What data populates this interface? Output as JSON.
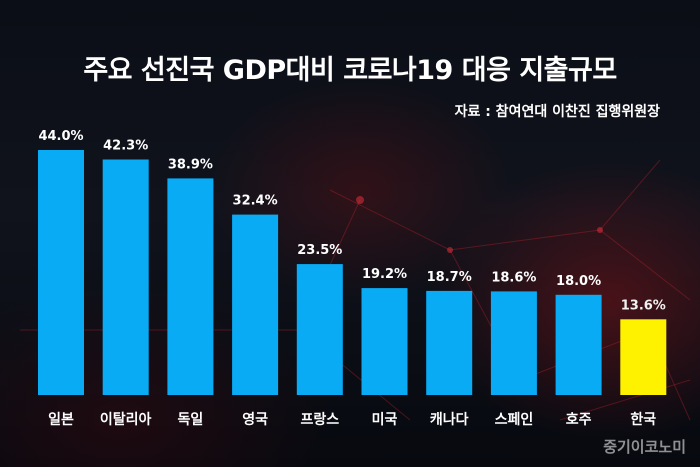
{
  "chart_data": {
    "type": "bar",
    "title": "주요 선진국 GDP대비 코로나19 대응 지출규모",
    "subtitle": "자료 : 참여연대 이찬진 집행위원장",
    "categories": [
      "일본",
      "이탈리아",
      "독일",
      "영국",
      "프랑스",
      "미국",
      "캐나다",
      "스페인",
      "호주",
      "한국"
    ],
    "values": [
      44.0,
      42.3,
      38.9,
      32.4,
      23.5,
      19.2,
      18.7,
      18.6,
      18.0,
      13.6
    ],
    "value_labels": [
      "44.0%",
      "42.3%",
      "38.9%",
      "32.4%",
      "23.5%",
      "19.2%",
      "18.7%",
      "18.6%",
      "18.0%",
      "13.6%"
    ],
    "ylim": [
      0,
      44
    ],
    "colors": {
      "bar": "#0aabf5",
      "highlight": "#fff200",
      "text": "#ffffff",
      "highlight_label": "#f2f2f2"
    },
    "highlight_index": 9,
    "grid": false,
    "legend": "none"
  },
  "watermark": "중기이코노미"
}
